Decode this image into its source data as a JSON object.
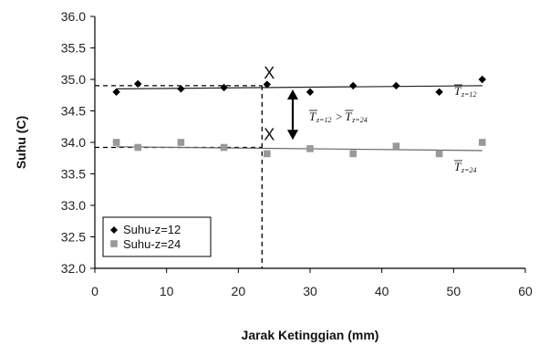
{
  "chart_data": {
    "type": "scatter",
    "xlabel": "Jarak Ketinggian (mm)",
    "ylabel": "Suhu (C)",
    "xlim": [
      0,
      60
    ],
    "ylim": [
      32.0,
      36.0
    ],
    "xticks": [
      0,
      10,
      20,
      30,
      40,
      50,
      60
    ],
    "yticks": [
      32.0,
      32.5,
      33.0,
      33.5,
      34.0,
      34.5,
      35.0,
      35.5,
      36.0
    ],
    "grid": false,
    "legend_position": "bottom-left",
    "series": [
      {
        "name": "Suhu-z=12",
        "marker": "diamond",
        "color": "#000000",
        "x": [
          3,
          6,
          12,
          18,
          24,
          30,
          36,
          42,
          48,
          54
        ],
        "y": [
          34.8,
          34.93,
          34.85,
          34.87,
          34.92,
          34.8,
          34.9,
          34.9,
          34.8,
          35.0
        ],
        "trendline": {
          "x": [
            3,
            54
          ],
          "y": [
            34.85,
            34.9
          ]
        }
      },
      {
        "name": "Suhu-z=24",
        "marker": "square",
        "color": "#999999",
        "x": [
          3,
          6,
          12,
          18,
          24,
          30,
          36,
          42,
          48,
          54
        ],
        "y": [
          34.0,
          33.92,
          34.0,
          33.92,
          33.82,
          33.9,
          33.82,
          33.94,
          33.82,
          34.0
        ],
        "trendline": {
          "x": [
            3,
            54
          ],
          "y": [
            33.93,
            33.87
          ]
        }
      }
    ],
    "reference_lines": {
      "x_vertical": 23.3,
      "y_upper": 34.9,
      "y_lower": 33.92
    },
    "annotations": {
      "marker_upper": "X",
      "marker_lower": "X",
      "t_symbol": "T",
      "label_upper_sub": "z=12",
      "label_lower_sub": "z=24",
      "comparison_gt": ">",
      "comparison_left_sub": "z=12",
      "comparison_right_sub": "z=24"
    }
  }
}
